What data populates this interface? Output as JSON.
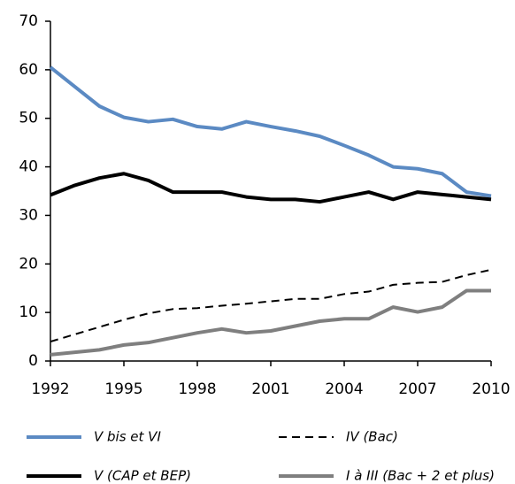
{
  "chart_data": {
    "type": "line",
    "x": [
      1992,
      1993,
      1994,
      1995,
      1996,
      1997,
      1998,
      1999,
      2000,
      2001,
      2002,
      2003,
      2004,
      2005,
      2006,
      2007,
      2008,
      2009,
      2010
    ],
    "series": [
      {
        "name": "V bis et VI",
        "color": "#5b8ac3",
        "dashed": false,
        "values": [
          60.5,
          56.5,
          52.5,
          50.2,
          49.3,
          49.8,
          48.3,
          47.8,
          49.3,
          48.3,
          47.4,
          46.3,
          44.4,
          42.4,
          40.0,
          39.6,
          38.6,
          34.8,
          34.0
        ]
      },
      {
        "name": "V (CAP et BEP)",
        "color": "#000000",
        "dashed": false,
        "values": [
          34.2,
          36.2,
          37.7,
          38.6,
          37.2,
          34.8,
          34.8,
          34.8,
          33.8,
          33.3,
          33.3,
          32.8,
          33.8,
          34.8,
          33.3,
          34.8,
          34.3,
          33.8,
          33.3
        ]
      },
      {
        "name": "IV (Bac)",
        "color": "#000000",
        "dashed": true,
        "values": [
          4.0,
          5.5,
          7.0,
          8.5,
          9.8,
          10.7,
          10.9,
          11.4,
          11.8,
          12.3,
          12.8,
          12.8,
          13.8,
          14.3,
          15.7,
          16.1,
          16.3,
          17.7,
          18.8
        ]
      },
      {
        "name": "I à III (Bac + 2 et plus)",
        "color": "#7f7f7f",
        "dashed": false,
        "values": [
          1.3,
          1.8,
          2.3,
          3.3,
          3.8,
          4.8,
          5.8,
          6.6,
          5.8,
          6.2,
          7.2,
          8.2,
          8.7,
          8.7,
          11.1,
          10.1,
          11.1,
          14.5,
          14.5
        ]
      }
    ],
    "xlim": [
      1992,
      2010
    ],
    "xticks": [
      1992,
      1995,
      1998,
      2001,
      2004,
      2007,
      2010
    ],
    "ylim": [
      0,
      70
    ],
    "yticks": [
      0,
      10,
      20,
      30,
      40,
      50,
      60,
      70
    ],
    "grid": false,
    "legend": "bottom"
  }
}
